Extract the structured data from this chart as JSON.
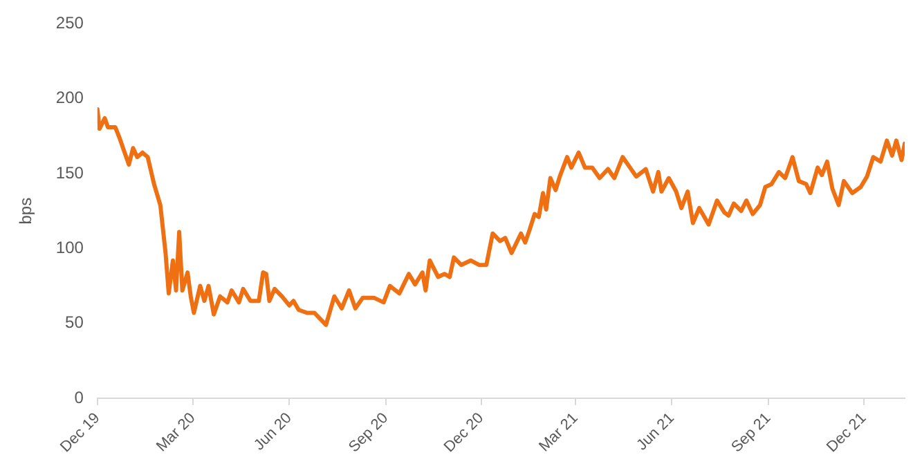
{
  "chart_data": {
    "type": "line",
    "ylabel": "bps",
    "grid": false,
    "legend": false,
    "marker": "none",
    "line_style": "solid",
    "ylim": [
      0,
      250
    ],
    "yticks": [
      0,
      50,
      100,
      150,
      200,
      250
    ],
    "xlim": [
      "2019-12-01",
      "2022-01-09"
    ],
    "xticks": [
      {
        "value": "2019-12-01",
        "label": "Dec 19"
      },
      {
        "value": "2020-03-01",
        "label": "Mar 20"
      },
      {
        "value": "2020-06-01",
        "label": "Jun 20"
      },
      {
        "value": "2020-09-01",
        "label": "Sep 20"
      },
      {
        "value": "2020-12-01",
        "label": "Dec 20"
      },
      {
        "value": "2021-03-01",
        "label": "Mar 21"
      },
      {
        "value": "2021-06-01",
        "label": "Jun 21"
      },
      {
        "value": "2021-09-01",
        "label": "Sep 21"
      },
      {
        "value": "2021-12-01",
        "label": "Dec 21"
      }
    ],
    "x": [
      "2019-12-01",
      "2019-12-03",
      "2019-12-08",
      "2019-12-11",
      "2019-12-18",
      "2019-12-22",
      "2019-12-26",
      "2019-12-31",
      "2020-01-04",
      "2020-01-08",
      "2020-01-13",
      "2020-01-18",
      "2020-01-24",
      "2020-01-30",
      "2020-02-04",
      "2020-02-07",
      "2020-02-11",
      "2020-02-14",
      "2020-02-17",
      "2020-02-20",
      "2020-02-25",
      "2020-02-28",
      "2020-03-02",
      "2020-03-08",
      "2020-03-12",
      "2020-03-16",
      "2020-03-21",
      "2020-03-27",
      "2020-04-03",
      "2020-04-07",
      "2020-04-14",
      "2020-04-18",
      "2020-04-25",
      "2020-05-03",
      "2020-05-07",
      "2020-05-10",
      "2020-05-13",
      "2020-05-18",
      "2020-05-25",
      "2020-06-01",
      "2020-06-05",
      "2020-06-10",
      "2020-06-18",
      "2020-06-25",
      "2020-07-06",
      "2020-07-14",
      "2020-07-21",
      "2020-07-28",
      "2020-08-03",
      "2020-08-10",
      "2020-08-21",
      "2020-08-30",
      "2020-09-05",
      "2020-09-14",
      "2020-09-23",
      "2020-09-29",
      "2020-10-06",
      "2020-10-09",
      "2020-10-13",
      "2020-10-21",
      "2020-10-27",
      "2020-11-01",
      "2020-11-05",
      "2020-11-12",
      "2020-11-21",
      "2020-11-29",
      "2020-12-06",
      "2020-12-12",
      "2020-12-19",
      "2020-12-24",
      "2020-12-30",
      "2021-01-08",
      "2021-01-12",
      "2021-01-16",
      "2021-01-21",
      "2021-01-25",
      "2021-01-29",
      "2021-02-01",
      "2021-02-05",
      "2021-02-10",
      "2021-02-14",
      "2021-02-21",
      "2021-02-25",
      "2021-03-04",
      "2021-03-10",
      "2021-03-17",
      "2021-03-24",
      "2021-04-01",
      "2021-04-07",
      "2021-04-15",
      "2021-04-22",
      "2021-04-28",
      "2021-05-07",
      "2021-05-14",
      "2021-05-19",
      "2021-05-22",
      "2021-05-29",
      "2021-06-05",
      "2021-06-10",
      "2021-06-16",
      "2021-06-21",
      "2021-06-27",
      "2021-07-06",
      "2021-07-14",
      "2021-07-21",
      "2021-07-25",
      "2021-07-30",
      "2021-08-06",
      "2021-08-11",
      "2021-08-17",
      "2021-08-24",
      "2021-08-29",
      "2021-09-04",
      "2021-09-11",
      "2021-09-17",
      "2021-09-24",
      "2021-09-30",
      "2021-10-07",
      "2021-10-11",
      "2021-10-18",
      "2021-10-22",
      "2021-10-27",
      "2021-11-01",
      "2021-11-07",
      "2021-11-12",
      "2021-11-20",
      "2021-11-28",
      "2021-12-04",
      "2021-12-10",
      "2021-12-17",
      "2021-12-23",
      "2021-12-28",
      "2022-01-01",
      "2022-01-06",
      "2022-01-09"
    ],
    "series": [
      {
        "color": "#ee7012",
        "values": [
          193,
          180,
          187,
          181,
          181,
          174,
          166,
          156,
          167,
          161,
          164,
          161,
          143,
          129,
          97,
          70,
          92,
          72,
          111,
          72,
          84,
          68,
          57,
          75,
          65,
          75,
          56,
          68,
          64,
          72,
          64,
          73,
          65,
          65,
          84,
          83,
          65,
          73,
          68,
          62,
          65,
          59,
          57,
          57,
          49,
          68,
          60,
          72,
          60,
          67,
          67,
          64,
          75,
          70,
          83,
          76,
          84,
          72,
          92,
          81,
          83,
          81,
          94,
          89,
          92,
          89,
          89,
          110,
          105,
          107,
          97,
          110,
          104,
          112,
          123,
          121,
          137,
          126,
          147,
          139,
          148,
          161,
          154,
          164,
          154,
          154,
          147,
          153,
          147,
          161,
          154,
          148,
          153,
          138,
          151,
          138,
          147,
          138,
          127,
          138,
          117,
          127,
          116,
          132,
          124,
          122,
          130,
          125,
          132,
          123,
          129,
          141,
          143,
          151,
          147,
          161,
          145,
          143,
          137,
          154,
          149,
          158,
          140,
          129,
          145,
          137,
          141,
          148,
          161,
          158,
          172,
          162,
          172,
          159,
          170
        ]
      }
    ]
  }
}
